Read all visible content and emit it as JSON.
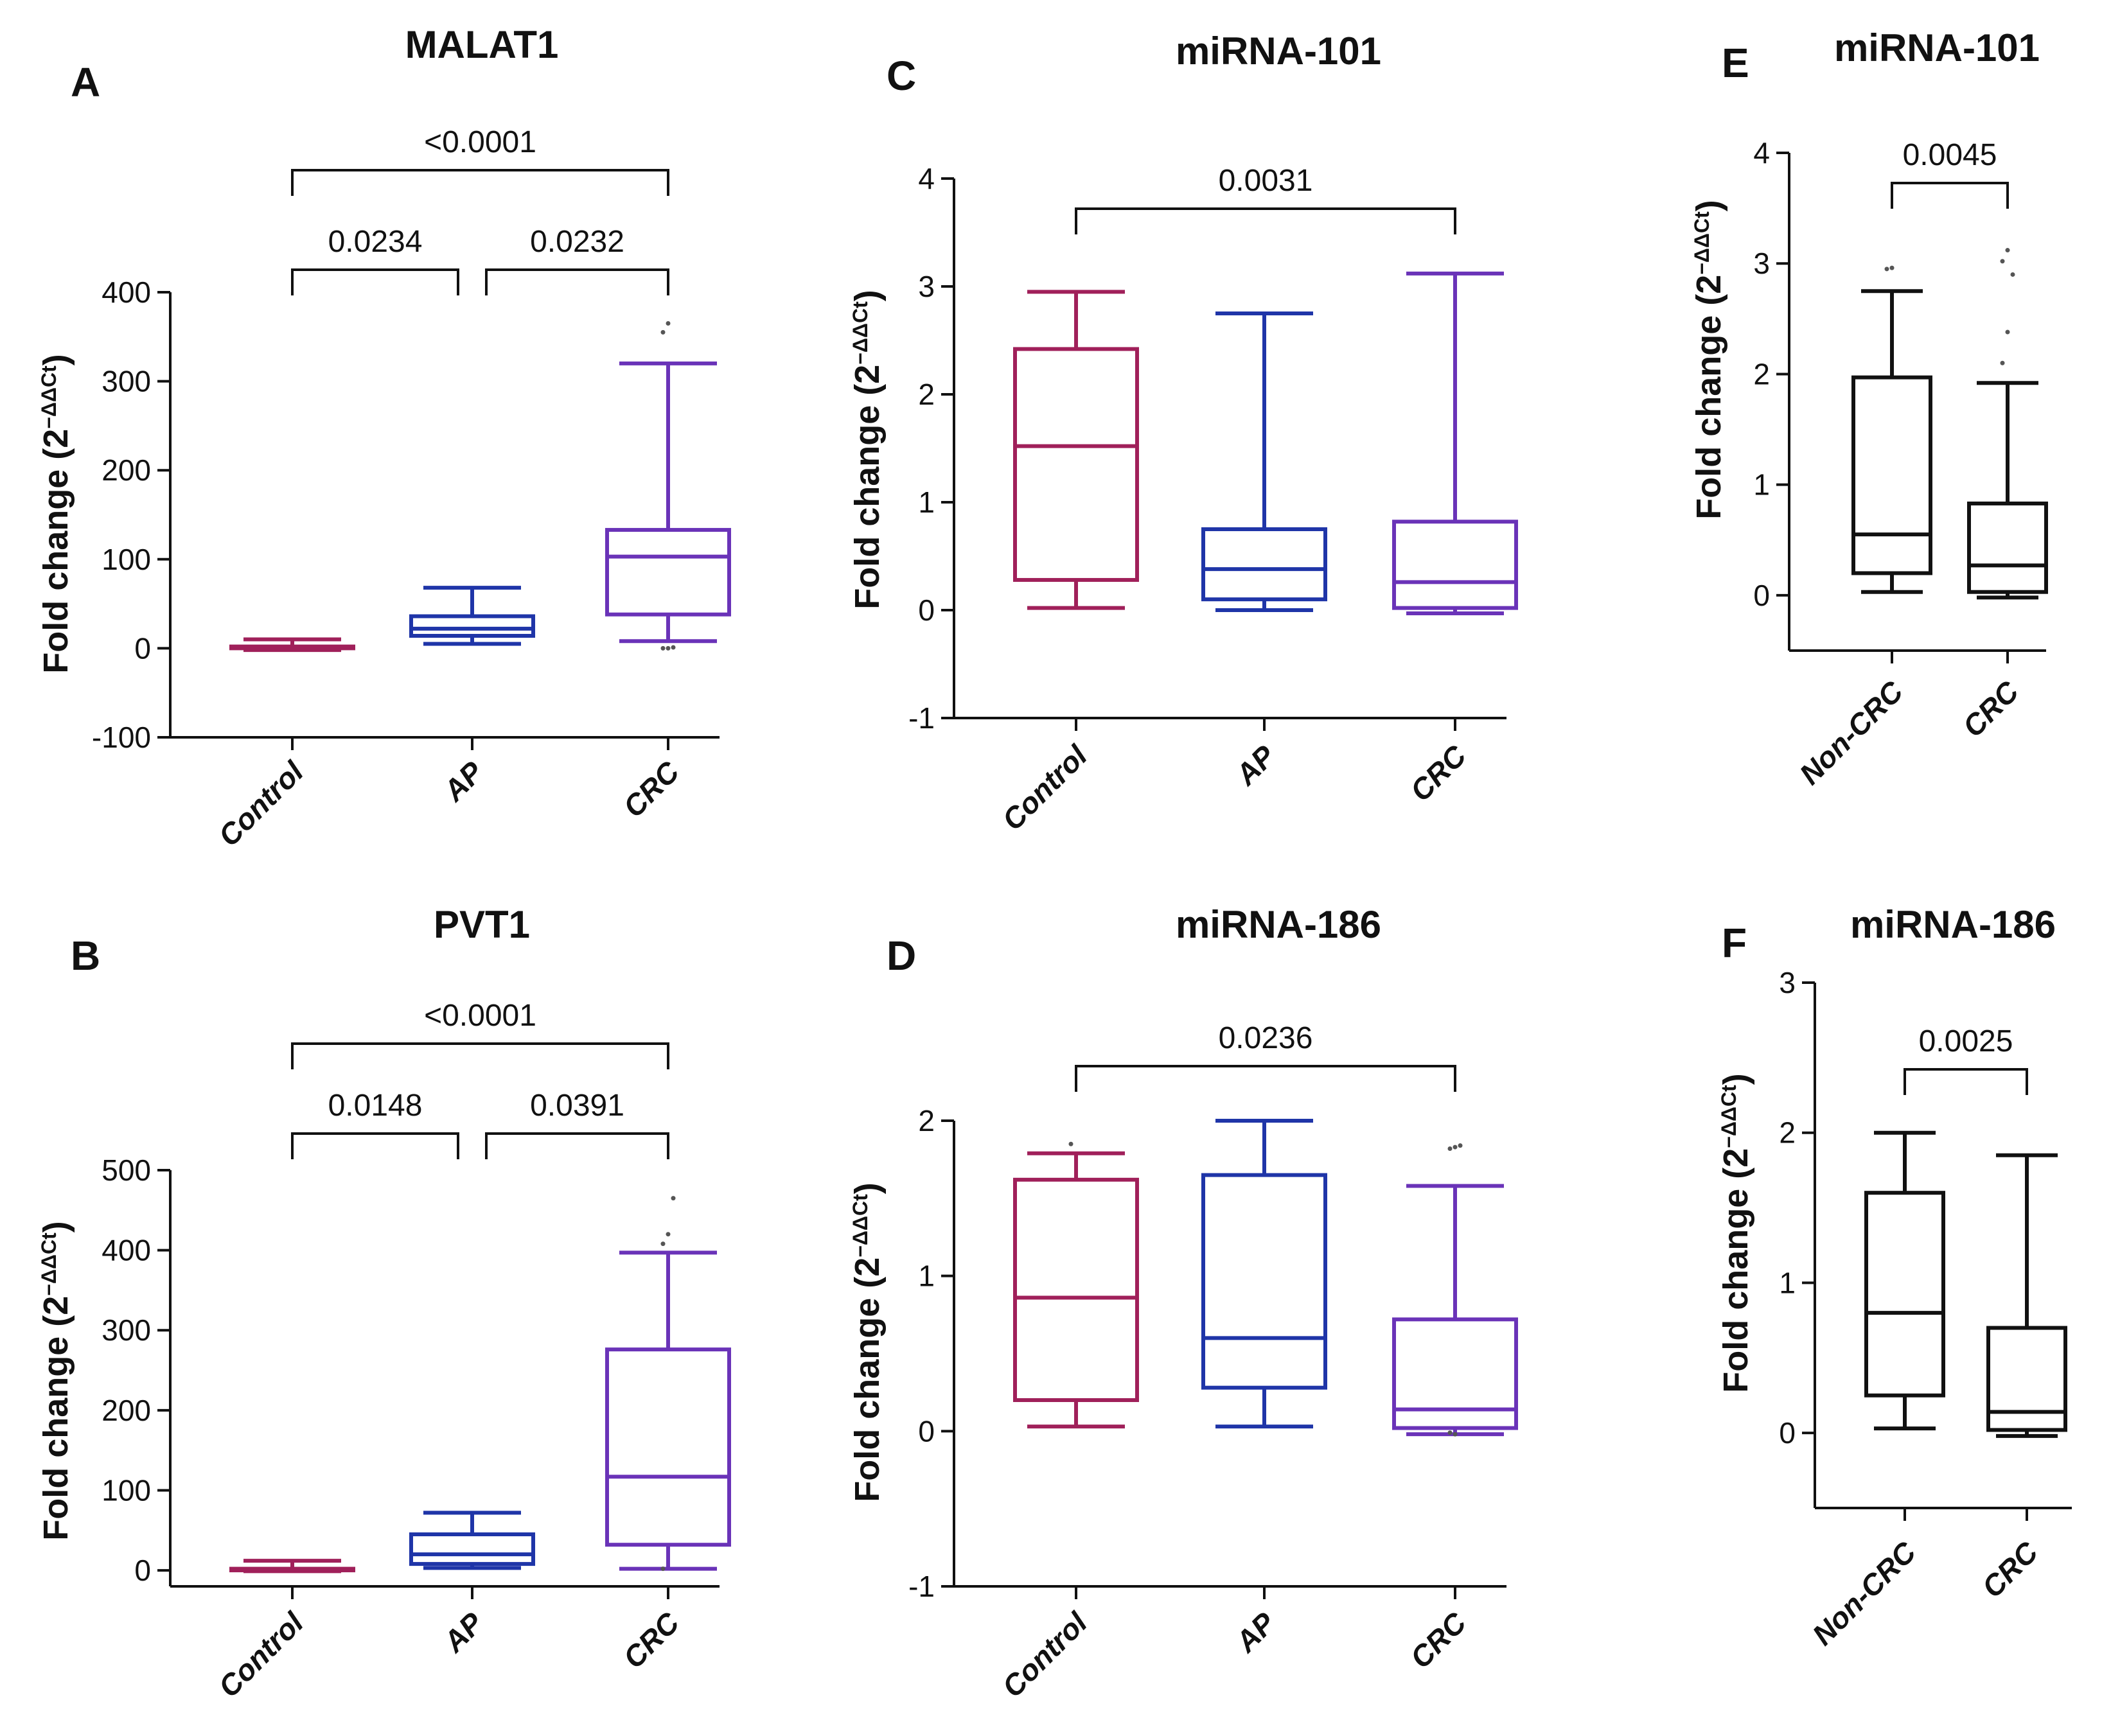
{
  "page": {
    "background": "#ffffff"
  },
  "chart_data": [
    {
      "panel": "A",
      "type": "box",
      "title": "MALAT1",
      "ylabel": "Fold change (2",
      "ylabel_sup": "−ΔΔCt",
      "ylabel_close": ")",
      "ylim": [
        -100,
        400
      ],
      "yticks": [
        -100,
        0,
        100,
        200,
        300,
        400
      ],
      "ytick_labels": [
        "-100",
        "0",
        "100",
        "200",
        "300",
        "400"
      ],
      "grid": false,
      "categories": [
        "Control",
        "AP",
        "CRC"
      ],
      "boxes": [
        {
          "label": "Control",
          "color": "#a0205a",
          "whisker_low": -2,
          "q1": 0,
          "median": 1,
          "q3": 2,
          "whisker_high": 10,
          "outliers": []
        },
        {
          "label": "AP",
          "color": "#1f35a8",
          "whisker_low": 5,
          "q1": 14,
          "median": 22,
          "q3": 36,
          "whisker_high": 68,
          "outliers": []
        },
        {
          "label": "CRC",
          "color": "#6a33b8",
          "whisker_low": 8,
          "q1": 38,
          "median": 103,
          "q3": 133,
          "whisker_high": 320,
          "outliers": [
            355,
            365,
            1,
            0,
            0
          ]
        }
      ],
      "comparisons": [
        {
          "from": 0,
          "to": 2,
          "level": 2,
          "label": "<0.0001"
        },
        {
          "from": 0,
          "to": 1,
          "level": 1,
          "label": "0.0234"
        },
        {
          "from": 1,
          "to": 2,
          "level": 1,
          "label": "0.0232"
        }
      ]
    },
    {
      "panel": "B",
      "type": "box",
      "title": "PVT1",
      "ylabel": "Fold change (2",
      "ylabel_sup": "−ΔΔCt",
      "ylabel_close": ")",
      "ylim": [
        -20,
        500
      ],
      "yticks": [
        0,
        100,
        200,
        300,
        400,
        500
      ],
      "ytick_labels": [
        "0",
        "100",
        "200",
        "300",
        "400",
        "500"
      ],
      "grid": false,
      "categories": [
        "Control",
        "AP",
        "CRC"
      ],
      "boxes": [
        {
          "label": "Control",
          "color": "#a0205a",
          "whisker_low": -1,
          "q1": 0,
          "median": 1,
          "q3": 2,
          "whisker_high": 12,
          "outliers": []
        },
        {
          "label": "AP",
          "color": "#1f35a8",
          "whisker_low": 3,
          "q1": 8,
          "median": 20,
          "q3": 45,
          "whisker_high": 72,
          "outliers": []
        },
        {
          "label": "CRC",
          "color": "#6a33b8",
          "whisker_low": 2,
          "q1": 32,
          "median": 117,
          "q3": 276,
          "whisker_high": 397,
          "outliers": [
            408,
            420,
            465,
            2
          ]
        }
      ],
      "comparisons": [
        {
          "from": 0,
          "to": 2,
          "level": 2,
          "label": "<0.0001"
        },
        {
          "from": 0,
          "to": 1,
          "level": 1,
          "label": "0.0148"
        },
        {
          "from": 1,
          "to": 2,
          "level": 1,
          "label": "0.0391"
        }
      ]
    },
    {
      "panel": "C",
      "type": "box",
      "title": "miRNA-101",
      "ylabel": "Fold change (2",
      "ylabel_sup": "−ΔΔCt",
      "ylabel_close": ")",
      "ylim": [
        -1,
        4
      ],
      "yticks": [
        -1,
        0,
        1,
        2,
        3,
        4
      ],
      "ytick_labels": [
        "-1",
        "0",
        "1",
        "2",
        "3",
        "4"
      ],
      "grid": false,
      "categories": [
        "Control",
        "AP",
        "CRC"
      ],
      "boxes": [
        {
          "label": "Control",
          "color": "#a0205a",
          "whisker_low": 0.02,
          "q1": 0.28,
          "median": 1.52,
          "q3": 2.42,
          "whisker_high": 2.95,
          "outliers": []
        },
        {
          "label": "AP",
          "color": "#1f35a8",
          "whisker_low": 0.0,
          "q1": 0.1,
          "median": 0.38,
          "q3": 0.75,
          "whisker_high": 2.75,
          "outliers": []
        },
        {
          "label": "CRC",
          "color": "#6a33b8",
          "whisker_low": -0.03,
          "q1": 0.02,
          "median": 0.26,
          "q3": 0.82,
          "whisker_high": 3.12,
          "outliers": []
        }
      ],
      "comparisons": [
        {
          "from": 0,
          "to": 2,
          "level": 1,
          "label": "0.0031"
        }
      ]
    },
    {
      "panel": "D",
      "type": "box",
      "title": "miRNA-186",
      "ylabel": "Fold change (2",
      "ylabel_sup": "−ΔΔCt",
      "ylabel_close": ")",
      "ylim": [
        -1,
        2
      ],
      "yticks": [
        -1,
        0,
        1,
        2
      ],
      "ytick_labels": [
        "-1",
        "0",
        "1",
        "2"
      ],
      "grid": false,
      "categories": [
        "Control",
        "AP",
        "CRC"
      ],
      "boxes": [
        {
          "label": "Control",
          "color": "#a0205a",
          "whisker_low": 0.03,
          "q1": 0.2,
          "median": 0.86,
          "q3": 1.62,
          "whisker_high": 1.79,
          "outliers": [
            1.85
          ]
        },
        {
          "label": "AP",
          "color": "#1f35a8",
          "whisker_low": 0.03,
          "q1": 0.28,
          "median": 0.6,
          "q3": 1.65,
          "whisker_high": 2.0,
          "outliers": []
        },
        {
          "label": "CRC",
          "color": "#6a33b8",
          "whisker_low": -0.02,
          "q1": 0.02,
          "median": 0.14,
          "q3": 0.72,
          "whisker_high": 1.58,
          "outliers": [
            1.82,
            1.83,
            1.84,
            -0.01,
            -0.02
          ]
        }
      ],
      "comparisons": [
        {
          "from": 0,
          "to": 2,
          "level": 1,
          "label": "0.0236"
        }
      ]
    },
    {
      "panel": "E",
      "type": "box",
      "title": "miRNA-101",
      "ylabel": "Fold change (2",
      "ylabel_sup": "−ΔΔCt",
      "ylabel_close": ")",
      "ylim": [
        -0.5,
        4
      ],
      "yticks": [
        0,
        1,
        2,
        3,
        4
      ],
      "ytick_labels": [
        "0",
        "1",
        "2",
        "3",
        "4"
      ],
      "grid": false,
      "categories": [
        "Non-CRC",
        "CRC"
      ],
      "boxes": [
        {
          "label": "Non-CRC",
          "color": "#111111",
          "whisker_low": 0.03,
          "q1": 0.2,
          "median": 0.55,
          "q3": 1.97,
          "whisker_high": 2.75,
          "outliers": [
            2.95,
            2.96
          ]
        },
        {
          "label": "CRC",
          "color": "#111111",
          "whisker_low": -0.02,
          "q1": 0.03,
          "median": 0.27,
          "q3": 0.83,
          "whisker_high": 1.92,
          "outliers": [
            2.1,
            2.38,
            2.9,
            3.02,
            3.12
          ]
        }
      ],
      "comparisons": [
        {
          "from": 0,
          "to": 1,
          "level": 1,
          "label": "0.0045"
        }
      ]
    },
    {
      "panel": "F",
      "type": "box",
      "title": "miRNA-186",
      "ylabel": "Fold change (2",
      "ylabel_sup": "−ΔΔCt",
      "ylabel_close": ")",
      "ylim": [
        -0.5,
        3
      ],
      "yticks": [
        0,
        1,
        2,
        3
      ],
      "ytick_labels": [
        "0",
        "1",
        "2",
        "3"
      ],
      "grid": false,
      "categories": [
        "Non-CRC",
        "CRC"
      ],
      "boxes": [
        {
          "label": "Non-CRC",
          "color": "#111111",
          "whisker_low": 0.03,
          "q1": 0.25,
          "median": 0.8,
          "q3": 1.6,
          "whisker_high": 2.0,
          "outliers": []
        },
        {
          "label": "CRC",
          "color": "#111111",
          "whisker_low": -0.02,
          "q1": 0.02,
          "median": 0.14,
          "q3": 0.7,
          "whisker_high": 1.85,
          "outliers": []
        }
      ],
      "comparisons": [
        {
          "from": 0,
          "to": 1,
          "level": 1,
          "label": "0.0025"
        }
      ]
    }
  ]
}
